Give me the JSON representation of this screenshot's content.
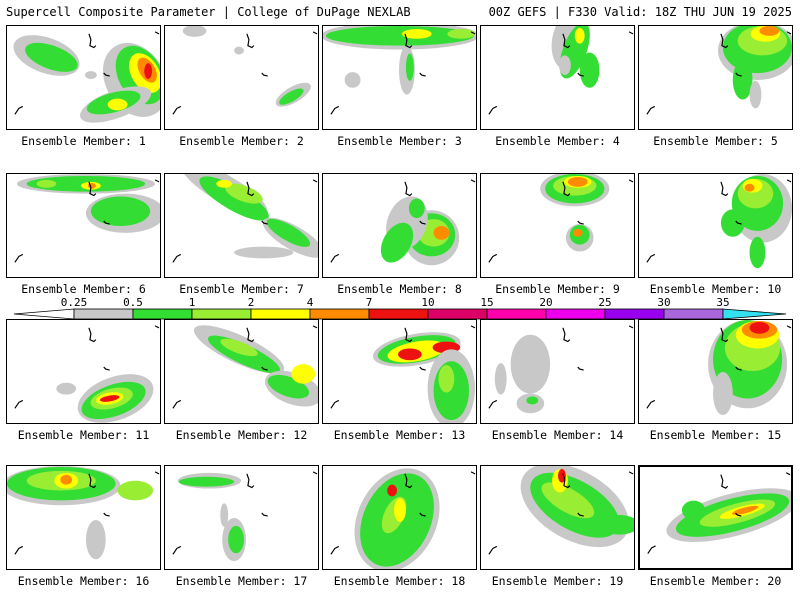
{
  "header": {
    "left_title": "Supercell Composite Parameter | College of DuPage NEXLAB",
    "right_title": "00Z GEFS | F330 Valid: 18Z THU JUN 19 2025"
  },
  "colorbar": {
    "labels": [
      "0.25",
      "0.5",
      "1",
      "2",
      "4",
      "7",
      "10",
      "15",
      "20",
      "25",
      "30",
      "35"
    ],
    "colors": [
      "#c8c8c8",
      "#33dd33",
      "#99ee33",
      "#ffff00",
      "#ff8c00",
      "#ee1111",
      "#dd0066",
      "#ff00aa",
      "#ee00ee",
      "#9900ee",
      "#aa66dd",
      "#33e0f0"
    ]
  },
  "members": [
    {
      "label": "Ensemble Member: 1"
    },
    {
      "label": "Ensemble Member: 2"
    },
    {
      "label": "Ensemble Member: 3"
    },
    {
      "label": "Ensemble Member: 4"
    },
    {
      "label": "Ensemble Member: 5"
    },
    {
      "label": "Ensemble Member: 6"
    },
    {
      "label": "Ensemble Member: 7"
    },
    {
      "label": "Ensemble Member: 8"
    },
    {
      "label": "Ensemble Member: 9"
    },
    {
      "label": "Ensemble Member: 10"
    },
    {
      "label": "Ensemble Member: 11"
    },
    {
      "label": "Ensemble Member: 12"
    },
    {
      "label": "Ensemble Member: 13"
    },
    {
      "label": "Ensemble Member: 14"
    },
    {
      "label": "Ensemble Member: 15"
    },
    {
      "label": "Ensemble Member: 16"
    },
    {
      "label": "Ensemble Member: 17"
    },
    {
      "label": "Ensemble Member: 18"
    },
    {
      "label": "Ensemble Member: 19"
    },
    {
      "label": "Ensemble Member: 20"
    }
  ],
  "selected_member": "Ensemble Member: 20"
}
